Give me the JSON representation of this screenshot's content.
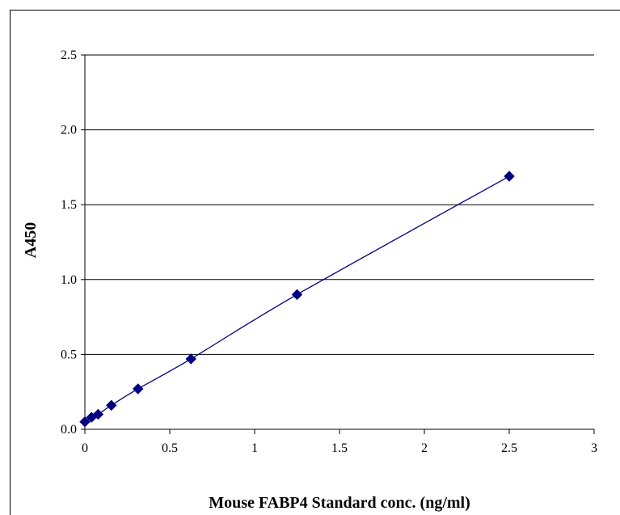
{
  "chart_data": {
    "type": "scatter",
    "title": "",
    "xlabel": "Mouse FABP4 Standard conc. (ng/ml)",
    "ylabel": "A450",
    "xlim": [
      0,
      3
    ],
    "ylim": [
      0,
      2.5
    ],
    "x_ticks": [
      "0",
      "0.5",
      "1",
      "1.5",
      "2",
      "2.5",
      "3"
    ],
    "y_ticks": [
      "0.0",
      "0.5",
      "1.0",
      "1.5",
      "2.0",
      "2.5"
    ],
    "grid": "horizontal",
    "series": [
      {
        "color": "#000080",
        "marker": "diamond",
        "line": "smooth",
        "x": [
          0,
          0.039,
          0.078,
          0.156,
          0.313,
          0.625,
          1.25,
          2.5
        ],
        "y": [
          0.05,
          0.08,
          0.1,
          0.16,
          0.27,
          0.47,
          0.9,
          1.69
        ]
      }
    ]
  }
}
